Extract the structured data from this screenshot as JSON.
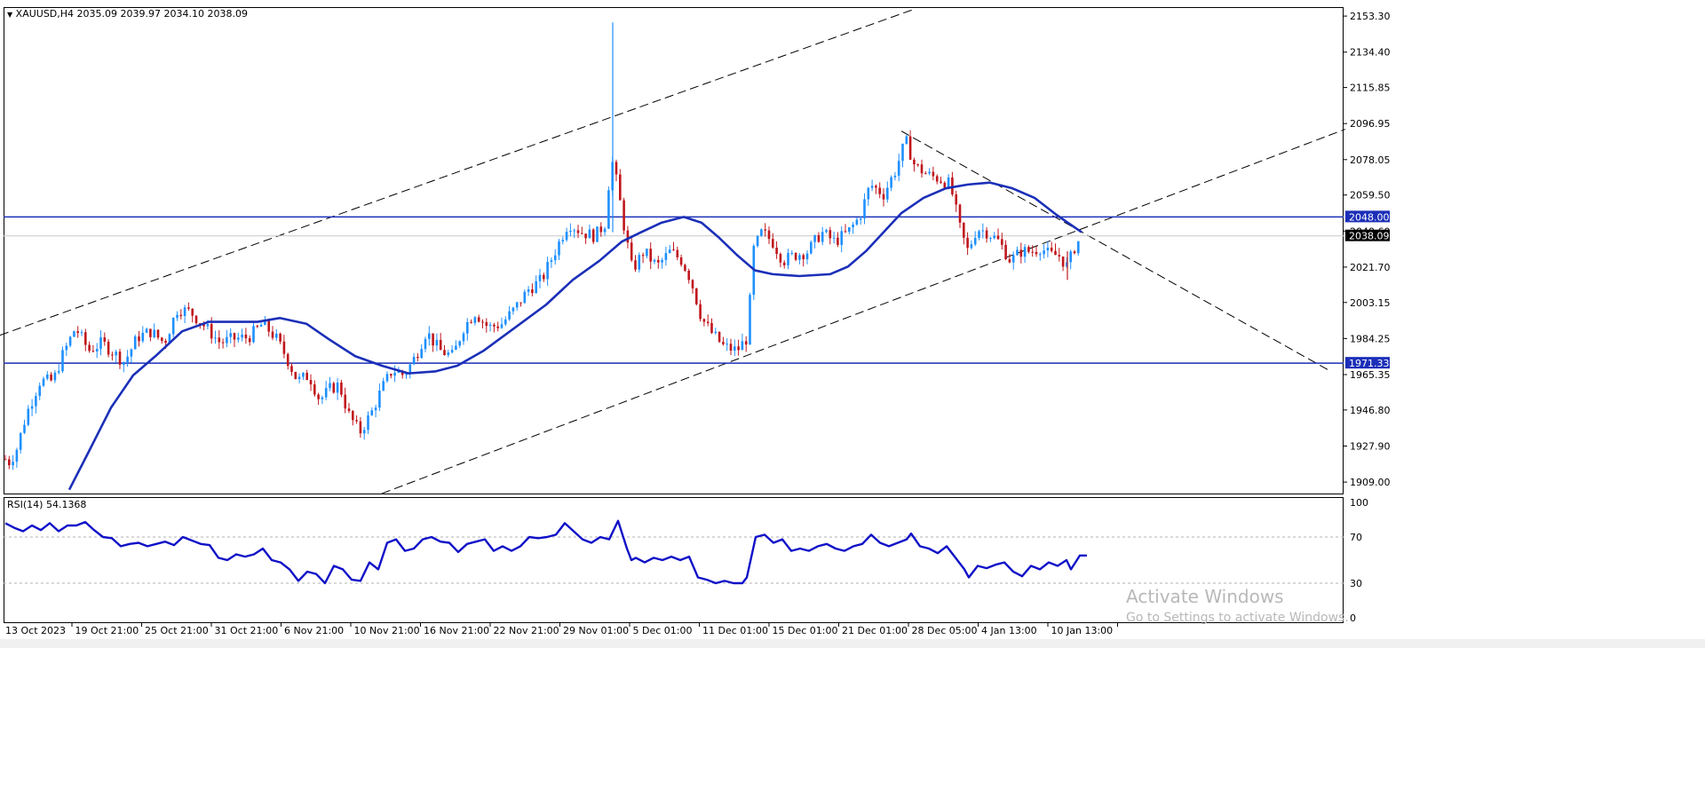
{
  "header": {
    "symbol_info": "XAUUSD,H4",
    "ohlc": "2035.09 2039.97 2034.10 2038.09"
  },
  "rsi_panel": {
    "title": "RSI(14) 54.1368",
    "levels": [
      "100",
      "70",
      "30",
      "0"
    ]
  },
  "price_axis": {
    "ticks": [
      "2153.30",
      "2134.40",
      "2115.85",
      "2096.95",
      "2078.05",
      "2059.50",
      "2040.60",
      "2021.70",
      "2003.15",
      "1984.25",
      "1965.35",
      "1946.80",
      "1927.90",
      "1909.00"
    ]
  },
  "price_labels": {
    "upper_line": "2048.00",
    "current": "2038.09",
    "lower_line": "1971.33"
  },
  "time_axis": {
    "labels": [
      "13 Oct 2023",
      "19 Oct 21:00",
      "25 Oct 21:00",
      "31 Oct 21:00",
      "6 Nov 21:00",
      "10 Nov 21:00",
      "16 Nov 21:00",
      "22 Nov 21:00",
      "29 Nov 01:00",
      "5 Dec 01:00",
      "11 Dec 01:00",
      "15 Dec 01:00",
      "21 Dec 01:00",
      "28 Dec 05:00",
      "4 Jan 13:00",
      "10 Jan 13:00"
    ]
  },
  "watermark": {
    "title": "Activate Windows",
    "subtitle": "Go to Settings to activate Windows."
  },
  "colors": {
    "bull": "#1e90ff",
    "bear": "#c0161c",
    "ma": "#1b2fb8",
    "rsi": "#1010c8",
    "hline": "#1b2fb8",
    "current": "#000000"
  },
  "chart_data": {
    "type": "candlestick",
    "symbol": "XAUUSD",
    "timeframe": "H4",
    "y_range": [
      1903,
      2158
    ],
    "price_path": [
      [
        0,
        1930
      ],
      [
        8,
        1918
      ],
      [
        18,
        1925
      ],
      [
        30,
        1945
      ],
      [
        45,
        1962
      ],
      [
        60,
        1962
      ],
      [
        70,
        1975
      ],
      [
        85,
        1990
      ],
      [
        100,
        1978
      ],
      [
        115,
        1982
      ],
      [
        125,
        1978
      ],
      [
        140,
        1972
      ],
      [
        155,
        1985
      ],
      [
        170,
        1988
      ],
      [
        185,
        1982
      ],
      [
        200,
        2000
      ],
      [
        215,
        1998
      ],
      [
        232,
        1990
      ],
      [
        248,
        1982
      ],
      [
        262,
        1984
      ],
      [
        280,
        1985
      ],
      [
        296,
        1992
      ],
      [
        310,
        1985
      ],
      [
        322,
        1975
      ],
      [
        335,
        1962
      ],
      [
        348,
        1965
      ],
      [
        360,
        1952
      ],
      [
        372,
        1958
      ],
      [
        382,
        1960
      ],
      [
        392,
        1945
      ],
      [
        405,
        1935
      ],
      [
        418,
        1945
      ],
      [
        430,
        1958
      ],
      [
        442,
        1968
      ],
      [
        455,
        1965
      ],
      [
        468,
        1975
      ],
      [
        480,
        1988
      ],
      [
        495,
        1978
      ],
      [
        510,
        1975
      ],
      [
        522,
        1990
      ],
      [
        535,
        1998
      ],
      [
        550,
        1990
      ],
      [
        565,
        1992
      ],
      [
        580,
        2000
      ],
      [
        595,
        2010
      ],
      [
        610,
        2015
      ],
      [
        625,
        2030
      ],
      [
        640,
        2045
      ],
      [
        655,
        2040
      ],
      [
        670,
        2038
      ],
      [
        682,
        2045
      ],
      [
        688,
        2080
      ],
      [
        695,
        2065
      ],
      [
        702,
        2045
      ],
      [
        712,
        2020
      ],
      [
        725,
        2030
      ],
      [
        740,
        2022
      ],
      [
        755,
        2030
      ],
      [
        768,
        2025
      ],
      [
        778,
        2015
      ],
      [
        790,
        1995
      ],
      [
        800,
        1988
      ],
      [
        815,
        1980
      ],
      [
        830,
        1978
      ],
      [
        842,
        1985
      ],
      [
        848,
        2030
      ],
      [
        858,
        2040
      ],
      [
        870,
        2035
      ],
      [
        882,
        2025
      ],
      [
        895,
        2028
      ],
      [
        910,
        2030
      ],
      [
        925,
        2040
      ],
      [
        940,
        2035
      ],
      [
        955,
        2040
      ],
      [
        968,
        2048
      ],
      [
        980,
        2065
      ],
      [
        995,
        2060
      ],
      [
        1008,
        2072
      ],
      [
        1020,
        2088
      ],
      [
        1030,
        2075
      ],
      [
        1045,
        2070
      ],
      [
        1058,
        2068
      ],
      [
        1070,
        2065
      ],
      [
        1082,
        2040
      ],
      [
        1090,
        2030
      ],
      [
        1100,
        2042
      ],
      [
        1112,
        2040
      ],
      [
        1125,
        2035
      ],
      [
        1138,
        2025
      ],
      [
        1150,
        2030
      ],
      [
        1162,
        2030
      ],
      [
        1172,
        2032
      ],
      [
        1182,
        2028
      ],
      [
        1192,
        2028
      ],
      [
        1202,
        2022
      ],
      [
        1210,
        2032
      ],
      [
        1218,
        2038
      ]
    ],
    "moving_average": [
      [
        78,
        1905
      ],
      [
        100,
        1925
      ],
      [
        125,
        1948
      ],
      [
        150,
        1965
      ],
      [
        175,
        1975
      ],
      [
        205,
        1988
      ],
      [
        235,
        1993
      ],
      [
        260,
        1993
      ],
      [
        290,
        1993
      ],
      [
        315,
        1995
      ],
      [
        345,
        1992
      ],
      [
        370,
        1984
      ],
      [
        400,
        1975
      ],
      [
        430,
        1970
      ],
      [
        460,
        1966
      ],
      [
        490,
        1967
      ],
      [
        515,
        1970
      ],
      [
        545,
        1978
      ],
      [
        580,
        1990
      ],
      [
        615,
        2002
      ],
      [
        645,
        2015
      ],
      [
        675,
        2025
      ],
      [
        700,
        2035
      ],
      [
        722,
        2040
      ],
      [
        745,
        2045
      ],
      [
        770,
        2048
      ],
      [
        790,
        2045
      ],
      [
        810,
        2037
      ],
      [
        830,
        2028
      ],
      [
        850,
        2020
      ],
      [
        870,
        2018
      ],
      [
        900,
        2017
      ],
      [
        935,
        2018
      ],
      [
        955,
        2022
      ],
      [
        975,
        2030
      ],
      [
        995,
        2040
      ],
      [
        1015,
        2050
      ],
      [
        1040,
        2058
      ],
      [
        1065,
        2063
      ],
      [
        1090,
        2065
      ],
      [
        1115,
        2066
      ],
      [
        1140,
        2063
      ],
      [
        1165,
        2058
      ],
      [
        1190,
        2049
      ],
      [
        1218,
        2040
      ]
    ],
    "horizontal_lines": [
      2048.0,
      1971.33
    ],
    "current_price": 2038.09,
    "rsi": {
      "period": 14,
      "value": 54.1368,
      "y_range": [
        0,
        100
      ],
      "levels": [
        70,
        30
      ],
      "path": [
        [
          0,
          82
        ],
        [
          10,
          78
        ],
        [
          20,
          75
        ],
        [
          30,
          80
        ],
        [
          40,
          76
        ],
        [
          50,
          82
        ],
        [
          60,
          75
        ],
        [
          70,
          80
        ],
        [
          80,
          80
        ],
        [
          90,
          83
        ],
        [
          100,
          76
        ],
        [
          110,
          70
        ],
        [
          120,
          69
        ],
        [
          130,
          62
        ],
        [
          140,
          64
        ],
        [
          150,
          65
        ],
        [
          160,
          62
        ],
        [
          170,
          64
        ],
        [
          180,
          66
        ],
        [
          190,
          63
        ],
        [
          200,
          70
        ],
        [
          210,
          67
        ],
        [
          220,
          64
        ],
        [
          230,
          63
        ],
        [
          240,
          52
        ],
        [
          250,
          50
        ],
        [
          260,
          55
        ],
        [
          270,
          53
        ],
        [
          280,
          55
        ],
        [
          290,
          60
        ],
        [
          300,
          50
        ],
        [
          310,
          48
        ],
        [
          320,
          42
        ],
        [
          330,
          32
        ],
        [
          340,
          40
        ],
        [
          350,
          38
        ],
        [
          360,
          30
        ],
        [
          370,
          45
        ],
        [
          380,
          42
        ],
        [
          390,
          33
        ],
        [
          400,
          32
        ],
        [
          410,
          48
        ],
        [
          420,
          42
        ],
        [
          430,
          65
        ],
        [
          440,
          68
        ],
        [
          450,
          58
        ],
        [
          460,
          60
        ],
        [
          470,
          68
        ],
        [
          480,
          70
        ],
        [
          490,
          66
        ],
        [
          500,
          65
        ],
        [
          510,
          57
        ],
        [
          520,
          64
        ],
        [
          530,
          66
        ],
        [
          540,
          68
        ],
        [
          550,
          58
        ],
        [
          560,
          62
        ],
        [
          570,
          58
        ],
        [
          580,
          62
        ],
        [
          590,
          70
        ],
        [
          600,
          69
        ],
        [
          610,
          70
        ],
        [
          620,
          72
        ],
        [
          630,
          82
        ],
        [
          640,
          75
        ],
        [
          650,
          68
        ],
        [
          660,
          65
        ],
        [
          670,
          70
        ],
        [
          680,
          68
        ],
        [
          690,
          84
        ],
        [
          700,
          60
        ],
        [
          705,
          50
        ],
        [
          710,
          52
        ],
        [
          720,
          48
        ],
        [
          730,
          52
        ],
        [
          740,
          50
        ],
        [
          750,
          53
        ],
        [
          760,
          50
        ],
        [
          770,
          53
        ],
        [
          780,
          35
        ],
        [
          790,
          33
        ],
        [
          800,
          30
        ],
        [
          810,
          32
        ],
        [
          820,
          30
        ],
        [
          830,
          30
        ],
        [
          835,
          35
        ],
        [
          845,
          70
        ],
        [
          855,
          72
        ],
        [
          865,
          65
        ],
        [
          875,
          68
        ],
        [
          885,
          58
        ],
        [
          895,
          60
        ],
        [
          905,
          58
        ],
        [
          915,
          62
        ],
        [
          925,
          64
        ],
        [
          935,
          60
        ],
        [
          945,
          58
        ],
        [
          955,
          62
        ],
        [
          965,
          64
        ],
        [
          975,
          72
        ],
        [
          985,
          65
        ],
        [
          995,
          62
        ],
        [
          1005,
          65
        ],
        [
          1015,
          68
        ],
        [
          1020,
          73
        ],
        [
          1030,
          62
        ],
        [
          1040,
          60
        ],
        [
          1050,
          56
        ],
        [
          1060,
          62
        ],
        [
          1070,
          52
        ],
        [
          1080,
          42
        ],
        [
          1085,
          35
        ],
        [
          1095,
          45
        ],
        [
          1105,
          43
        ],
        [
          1115,
          46
        ],
        [
          1125,
          48
        ],
        [
          1135,
          40
        ],
        [
          1145,
          36
        ],
        [
          1155,
          45
        ],
        [
          1165,
          42
        ],
        [
          1175,
          48
        ],
        [
          1185,
          45
        ],
        [
          1195,
          50
        ],
        [
          1200,
          42
        ],
        [
          1205,
          48
        ],
        [
          1210,
          54
        ],
        [
          1218,
          54
        ]
      ]
    },
    "trendlines": [
      {
        "style": "dashed",
        "from": [
          0,
          1986
        ],
        "to": [
          1030,
          2157
        ]
      },
      {
        "style": "dashed",
        "from": [
          430,
          1903
        ],
        "to": [
          1515,
          2094
        ]
      },
      {
        "style": "dashed",
        "from": [
          1015,
          2093
        ],
        "to": [
          1495,
          1968
        ]
      }
    ],
    "spikes": [
      {
        "x": 690,
        "high": 2150,
        "low": 2040
      },
      {
        "x": 1202,
        "high": 2030,
        "low": 2015
      }
    ]
  }
}
